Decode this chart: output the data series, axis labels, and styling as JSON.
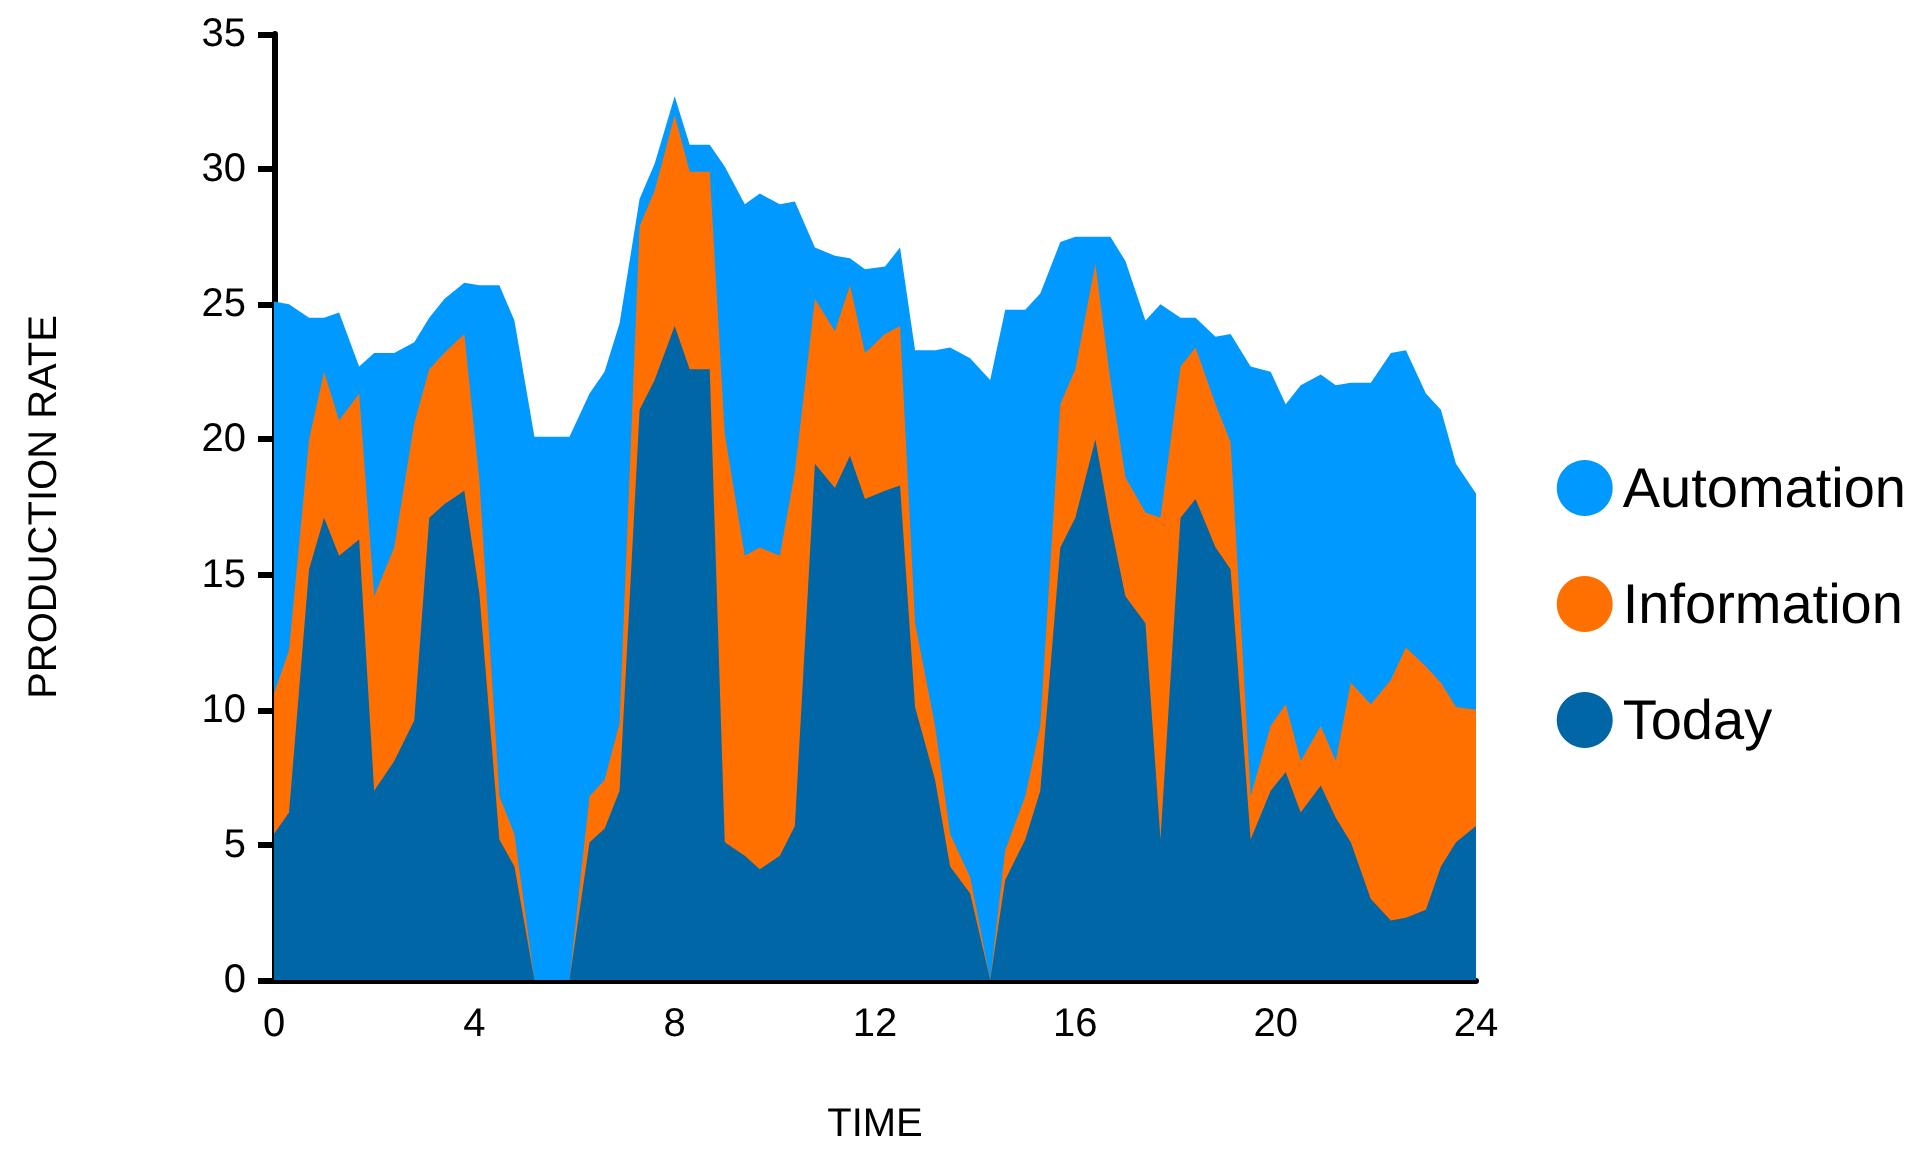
{
  "chart_data": {
    "type": "area",
    "stacked": true,
    "xlabel": "TIME",
    "ylabel": "PRODUCTION RATE",
    "x": [
      0,
      0.3,
      0.7,
      1.0,
      1.3,
      1.7,
      2.0,
      2.4,
      2.8,
      3.1,
      3.4,
      3.8,
      4.1,
      4.5,
      4.8,
      5.2,
      5.9,
      6.3,
      6.6,
      6.9,
      7.3,
      7.6,
      8.0,
      8.3,
      8.7,
      9.0,
      9.4,
      9.7,
      10.1,
      10.4,
      10.8,
      11.2,
      11.5,
      11.8,
      12.2,
      12.5,
      12.8,
      13.2,
      13.5,
      13.9,
      14.3,
      14.6,
      15.0,
      15.3,
      15.7,
      16.0,
      16.4,
      16.7,
      17.0,
      17.4,
      17.7,
      18.1,
      18.4,
      18.8,
      19.1,
      19.5,
      19.9,
      20.2,
      20.5,
      20.9,
      21.2,
      21.5,
      21.9,
      22.3,
      22.6,
      23.0,
      23.3,
      23.6,
      24.0
    ],
    "series": [
      {
        "name": "Today",
        "color": "#0066a5",
        "values": [
          5.4,
          6.2,
          15.2,
          17.1,
          15.7,
          16.3,
          7.0,
          8.1,
          9.6,
          17.1,
          17.6,
          18.1,
          14.3,
          5.2,
          4.2,
          0,
          0,
          5.1,
          5.6,
          7.0,
          21.1,
          22.2,
          24.2,
          22.6,
          22.6,
          5.1,
          4.6,
          4.1,
          4.6,
          5.7,
          19.1,
          18.2,
          19.4,
          17.8,
          18.1,
          18.3,
          10.1,
          7.4,
          4.2,
          3.2,
          0,
          3.7,
          5.2,
          7.0,
          16.0,
          17.1,
          20.0,
          16.9,
          14.2,
          13.2,
          5.2,
          17.1,
          17.8,
          16.0,
          15.2,
          5.2,
          7.0,
          7.7,
          6.2,
          7.2,
          6.0,
          5.1,
          3.0,
          2.2,
          2.3,
          2.6,
          4.2,
          5.1,
          5.7
        ]
      },
      {
        "name": "Information",
        "color": "#ff7000",
        "values": [
          5.2,
          6.0,
          4.8,
          5.4,
          5.0,
          5.4,
          7.2,
          7.9,
          11.0,
          5.5,
          5.6,
          5.8,
          4.2,
          1.6,
          1.2,
          0,
          0,
          1.7,
          1.8,
          2.5,
          6.8,
          7.0,
          7.8,
          7.3,
          7.3,
          15.1,
          11.1,
          11.9,
          11.1,
          13.1,
          6.1,
          5.8,
          6.3,
          5.4,
          5.8,
          5.9,
          3.1,
          2.0,
          1.2,
          0.6,
          0,
          1.1,
          1.6,
          2.4,
          5.3,
          5.5,
          6.5,
          5.3,
          4.4,
          4.1,
          11.9,
          5.6,
          5.6,
          5.3,
          4.7,
          1.6,
          2.4,
          2.5,
          1.9,
          2.2,
          2.1,
          5.9,
          7.2,
          8.9,
          10.0,
          9.0,
          6.8,
          5.0,
          4.3
        ]
      },
      {
        "name": "Automation",
        "color": "#0099ff",
        "values": [
          14.5,
          12.8,
          4.5,
          2.0,
          4.0,
          1.0,
          9.0,
          7.2,
          3.0,
          1.9,
          2.0,
          1.9,
          7.2,
          18.9,
          19.0,
          20.1,
          20.1,
          14.9,
          15.1,
          14.8,
          1.0,
          1.0,
          0.7,
          1.0,
          1.0,
          9.9,
          13.0,
          13.1,
          13.0,
          10.0,
          1.9,
          2.8,
          1.0,
          3.1,
          2.5,
          2.9,
          10.1,
          13.9,
          18.0,
          19.2,
          22.2,
          20.0,
          18.0,
          16.0,
          6.0,
          4.9,
          1.0,
          5.3,
          8.0,
          7.1,
          7.9,
          1.8,
          1.1,
          2.5,
          4.0,
          15.9,
          13.1,
          11.1,
          13.9,
          13.0,
          13.9,
          11.1,
          11.9,
          12.1,
          11.0,
          10.1,
          10.1,
          9.0,
          8.0
        ]
      }
    ],
    "xlim": [
      0,
      24
    ],
    "xticks": [
      0,
      4,
      8,
      12,
      16,
      20,
      24
    ],
    "ylim": [
      0,
      35
    ],
    "yticks": [
      0,
      5,
      10,
      15,
      20,
      25,
      30,
      35
    ],
    "grid": false,
    "legend": "right"
  }
}
